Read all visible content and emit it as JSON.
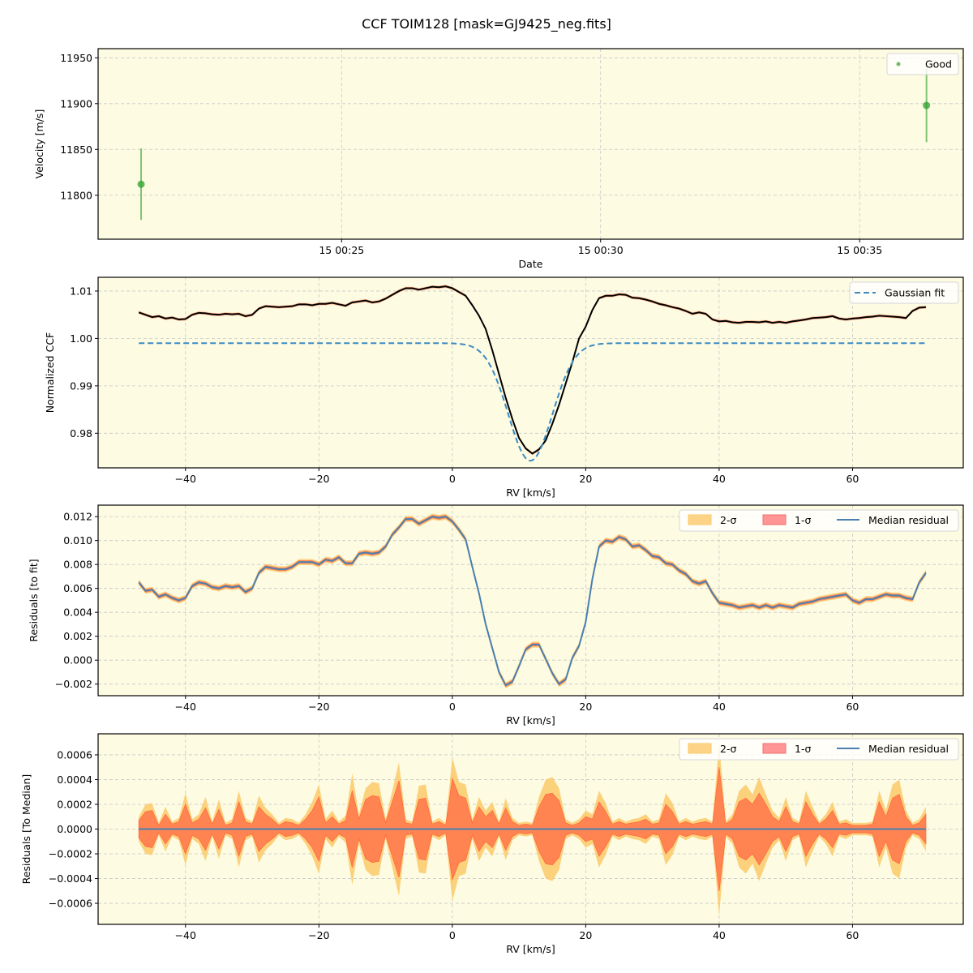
{
  "figure": {
    "title": "CCF TOIM128 [mask=GJ9425_neg.fits]",
    "background": "#ffffff",
    "axes_facecolor": "#fdfbe2"
  },
  "chart_data": [
    {
      "type": "scatter",
      "panel": "velocity",
      "title": "",
      "xlabel": "Date",
      "ylabel": "Velocity [m/s]",
      "x_ticks": [
        "15 00:25",
        "15 00:30",
        "15 00:35"
      ],
      "y_ticks": [
        11800,
        11850,
        11900,
        11950
      ],
      "ylim": [
        11752,
        11960
      ],
      "xlim_minutes": [
        20.3,
        37.0
      ],
      "grid": true,
      "legend": {
        "position": "upper right",
        "entries": [
          "Good"
        ]
      },
      "series": [
        {
          "name": "Good",
          "color": "#2ca02c",
          "points": [
            {
              "time": "15 00:21:08",
              "t_min": 21.13,
              "velocity": 11812,
              "error": 39
            },
            {
              "time": "15 00:36:17",
              "t_min": 36.29,
              "velocity": 11898,
              "error": 40
            }
          ]
        }
      ]
    },
    {
      "type": "line",
      "panel": "ccf",
      "xlabel": "RV [km/s]",
      "ylabel": "Normalized CCF",
      "x_ticks": [
        -40,
        -20,
        0,
        20,
        40,
        60
      ],
      "y_ticks": [
        0.98,
        0.99,
        1.0,
        1.01
      ],
      "y_tick_labels": [
        "0.98",
        "0.99",
        "1.00",
        "1.01"
      ],
      "xlim": [
        -53.1,
        76.6
      ],
      "ylim": [
        0.9727,
        1.0129
      ],
      "grid": true,
      "legend": {
        "position": "upper right",
        "entries": [
          "Gaussian fit"
        ]
      },
      "gaussian_fit": {
        "continuum": 0.999,
        "center": 11.7,
        "depth": 0.0248,
        "sigma": 3.3,
        "color": "#3b8bc2",
        "style": "dashed"
      },
      "x": [
        -47,
        -46,
        -45,
        -44,
        -43,
        -42,
        -41,
        -40,
        -39,
        -38,
        -37,
        -36,
        -35,
        -34,
        -33,
        -32,
        -31,
        -30,
        -29,
        -28,
        -27,
        -26,
        -25,
        -24,
        -23,
        -22,
        -21,
        -20,
        -19,
        -18,
        -17,
        -16,
        -15,
        -14,
        -13,
        -12,
        -11,
        -10,
        -9,
        -8,
        -7,
        -6,
        -5,
        -4,
        -3,
        -2,
        -1,
        0,
        1,
        2,
        3,
        4,
        5,
        6,
        7,
        8,
        9,
        10,
        11,
        12,
        13,
        14,
        15,
        16,
        17,
        18,
        19,
        20,
        21,
        22,
        23,
        24,
        25,
        26,
        27,
        28,
        29,
        30,
        31,
        32,
        33,
        34,
        35,
        36,
        37,
        38,
        39,
        40,
        41,
        42,
        43,
        44,
        45,
        46,
        47,
        48,
        49,
        50,
        51,
        52,
        53,
        54,
        55,
        56,
        57,
        58,
        59,
        60,
        61,
        62,
        63,
        64,
        65,
        66,
        67,
        68,
        69,
        70,
        71
      ],
      "series": [
        {
          "name": "Median CCF",
          "color": "#000000",
          "values": [
            1.0055,
            1.005,
            1.0045,
            1.0047,
            1.0042,
            1.0044,
            1.004,
            1.0041,
            1.005,
            1.0054,
            1.0053,
            1.0051,
            1.005,
            1.0052,
            1.0051,
            1.0052,
            1.0047,
            1.005,
            1.0063,
            1.0068,
            1.0067,
            1.0066,
            1.0067,
            1.0068,
            1.0072,
            1.0072,
            1.007,
            1.0073,
            1.0073,
            1.0075,
            1.0072,
            1.0069,
            1.0076,
            1.0078,
            1.008,
            1.0076,
            1.0078,
            1.0084,
            1.0092,
            1.01,
            1.0106,
            1.0106,
            1.0103,
            1.0106,
            1.0109,
            1.0108,
            1.011,
            1.0106,
            1.0098,
            1.009,
            1.007,
            1.0048,
            1.002,
            0.9975,
            0.9925,
            0.9875,
            0.983,
            0.979,
            0.9768,
            0.9757,
            0.9766,
            0.9785,
            0.982,
            0.986,
            0.9905,
            0.995,
            1.0,
            1.0025,
            1.006,
            1.0085,
            1.009,
            1.009,
            1.0093,
            1.0092,
            1.0086,
            1.0085,
            1.0082,
            1.0078,
            1.0073,
            1.007,
            1.0066,
            1.0063,
            1.0058,
            1.0052,
            1.0055,
            1.0052,
            1.004,
            1.0036,
            1.0037,
            1.0034,
            1.0033,
            1.0035,
            1.0035,
            1.0034,
            1.0036,
            1.0033,
            1.0035,
            1.0033,
            1.0036,
            1.0038,
            1.004,
            1.0043,
            1.0044,
            1.0045,
            1.0047,
            1.0042,
            1.004,
            1.0042,
            1.0043,
            1.0045,
            1.0046,
            1.0048,
            1.0047,
            1.0046,
            1.0045,
            1.0043,
            1.0058,
            1.0065,
            1.0066
          ]
        }
      ]
    },
    {
      "type": "line",
      "panel": "residuals_to_fit",
      "xlabel": "RV [km/s]",
      "ylabel": "Residuals [to fit]",
      "x_ticks": [
        -40,
        -20,
        0,
        20,
        40,
        60
      ],
      "y_ticks": [
        -0.002,
        0.0,
        0.002,
        0.004,
        0.006,
        0.008,
        0.01,
        0.012
      ],
      "y_tick_labels": [
        "−0.002",
        "0.000",
        "0.002",
        "0.004",
        "0.006",
        "0.008",
        "0.010",
        "0.012"
      ],
      "xlim": [
        -53.1,
        76.6
      ],
      "ylim": [
        -0.00297,
        0.01296
      ],
      "grid": true,
      "legend": {
        "position": "upper right",
        "ncol": 3,
        "entries": [
          "2-σ",
          "1-σ",
          "Median residual"
        ]
      },
      "x": [
        -47,
        -46,
        -45,
        -44,
        -43,
        -42,
        -41,
        -40,
        -39,
        -38,
        -37,
        -36,
        -35,
        -34,
        -33,
        -32,
        -31,
        -30,
        -29,
        -28,
        -27,
        -26,
        -25,
        -24,
        -23,
        -22,
        -21,
        -20,
        -19,
        -18,
        -17,
        -16,
        -15,
        -14,
        -13,
        -12,
        -11,
        -10,
        -9,
        -8,
        -7,
        -6,
        -5,
        -4,
        -3,
        -2,
        -1,
        0,
        1,
        2,
        3,
        4,
        5,
        6,
        7,
        8,
        9,
        10,
        11,
        12,
        13,
        14,
        15,
        16,
        17,
        18,
        19,
        20,
        21,
        22,
        23,
        24,
        25,
        26,
        27,
        28,
        29,
        30,
        31,
        32,
        33,
        34,
        35,
        36,
        37,
        38,
        39,
        40,
        41,
        42,
        43,
        44,
        45,
        46,
        47,
        48,
        49,
        50,
        51,
        52,
        53,
        54,
        55,
        56,
        57,
        58,
        59,
        60,
        61,
        62,
        63,
        64,
        65,
        66,
        67,
        68,
        69,
        70,
        71
      ],
      "series": [
        {
          "name": "Median residual",
          "color": "#4a7fb0",
          "values": [
            0.0065,
            0.0058,
            0.0059,
            0.0053,
            0.0055,
            0.0052,
            0.005,
            0.0052,
            0.0062,
            0.0065,
            0.0064,
            0.0061,
            0.006,
            0.0062,
            0.0061,
            0.0062,
            0.0057,
            0.006,
            0.0073,
            0.0078,
            0.0077,
            0.0076,
            0.0076,
            0.0078,
            0.0082,
            0.0082,
            0.0082,
            0.008,
            0.0084,
            0.0083,
            0.0086,
            0.0081,
            0.0081,
            0.0089,
            0.009,
            0.0089,
            0.009,
            0.0095,
            0.0105,
            0.0111,
            0.0118,
            0.0118,
            0.0114,
            0.0117,
            0.012,
            0.0119,
            0.012,
            0.0116,
            0.0109,
            0.0101,
            0.0078,
            0.0056,
            0.003,
            0.001,
            -0.001,
            -0.0021,
            -0.0018,
            -0.0005,
            0.0009,
            0.0013,
            0.0013,
            0.0001,
            -0.0011,
            -0.002,
            -0.0016,
            0.0002,
            0.0012,
            0.0032,
            0.0068,
            0.0095,
            0.01,
            0.0099,
            0.0103,
            0.0101,
            0.0095,
            0.0096,
            0.0092,
            0.0087,
            0.0086,
            0.0081,
            0.008,
            0.0075,
            0.0072,
            0.0066,
            0.0064,
            0.0066,
            0.0056,
            0.0048,
            0.0047,
            0.0046,
            0.0044,
            0.0045,
            0.0046,
            0.0044,
            0.0046,
            0.0044,
            0.0046,
            0.0045,
            0.0044,
            0.0047,
            0.0048,
            0.0049,
            0.0051,
            0.0052,
            0.0053,
            0.0054,
            0.0055,
            0.005,
            0.0048,
            0.0051,
            0.0051,
            0.0053,
            0.0055,
            0.0054,
            0.0054,
            0.0052,
            0.0051,
            0.0065,
            0.0073,
            0.0076
          ]
        }
      ]
    },
    {
      "type": "area",
      "panel": "residuals_to_median",
      "xlabel": "RV [km/s]",
      "ylabel": "Residuals [To Median]",
      "x_ticks": [
        -40,
        -20,
        0,
        20,
        40,
        60
      ],
      "y_ticks": [
        -0.0006,
        -0.0004,
        -0.0002,
        0.0,
        0.0002,
        0.0004,
        0.0006
      ],
      "y_tick_labels": [
        "−0.0006",
        "−0.0004",
        "−0.0002",
        "0.0000",
        "0.0002",
        "0.0004",
        "0.0006"
      ],
      "xlim": [
        -53.1,
        76.6
      ],
      "ylim": [
        -0.00077,
        0.00077
      ],
      "grid": true,
      "legend": {
        "position": "upper right",
        "ncol": 3,
        "entries": [
          "2-σ",
          "1-σ",
          "Median residual"
        ]
      },
      "x": [
        -47,
        -46,
        -45,
        -44,
        -43,
        -42,
        -41,
        -40,
        -39,
        -38,
        -37,
        -36,
        -35,
        -34,
        -33,
        -32,
        -31,
        -30,
        -29,
        -28,
        -27,
        -26,
        -25,
        -24,
        -23,
        -22,
        -21,
        -20,
        -19,
        -18,
        -17,
        -16,
        -15,
        -14,
        -13,
        -12,
        -11,
        -10,
        -9,
        -8,
        -7,
        -6,
        -5,
        -4,
        -3,
        -2,
        -1,
        0,
        1,
        2,
        3,
        4,
        5,
        6,
        7,
        8,
        9,
        10,
        11,
        12,
        13,
        14,
        15,
        16,
        17,
        18,
        19,
        20,
        21,
        22,
        23,
        24,
        25,
        26,
        27,
        28,
        29,
        30,
        31,
        32,
        33,
        34,
        35,
        36,
        37,
        38,
        39,
        40,
        41,
        42,
        43,
        44,
        45,
        46,
        47,
        48,
        49,
        50,
        51,
        52,
        53,
        54,
        55,
        56,
        57,
        58,
        59,
        60,
        61,
        62,
        63,
        64,
        65,
        66,
        67,
        68,
        69,
        70,
        71
      ],
      "series": [
        {
          "name": "1-σ",
          "color": "#ff7f50",
          "half_width": [
            7e-05,
            0.00014,
            0.00015,
            3e-05,
            0.00012,
            4e-05,
            6e-05,
            0.0002,
            5e-05,
            8e-05,
            0.00017,
            4e-05,
            0.00016,
            3e-05,
            5e-05,
            0.00022,
            6e-05,
            4e-05,
            0.00018,
            0.00012,
            8e-05,
            3e-05,
            6e-05,
            5e-05,
            3e-05,
            8e-05,
            0.00015,
            0.00026,
            5e-05,
            0.0001,
            4e-05,
            7e-05,
            0.00031,
            8e-05,
            0.00024,
            0.00027,
            0.00026,
            5e-05,
            0.00022,
            0.00039,
            5e-05,
            4e-05,
            0.00024,
            0.00025,
            4e-05,
            6e-05,
            3e-05,
            0.00041,
            0.00027,
            0.00025,
            5e-05,
            0.00018,
            0.0001,
            0.00015,
            4e-05,
            0.00017,
            6e-05,
            3e-05,
            4e-05,
            3e-05,
            0.00018,
            0.00028,
            0.00029,
            0.00023,
            5e-05,
            3e-05,
            5e-05,
            0.0001,
            8e-05,
            0.00022,
            0.00014,
            4e-05,
            6e-05,
            4e-05,
            5e-05,
            6e-05,
            8e-05,
            4e-05,
            5e-05,
            0.0002,
            0.00014,
            4e-05,
            6e-05,
            4e-05,
            5e-05,
            6e-05,
            4e-05,
            0.0005,
            4e-05,
            8e-05,
            0.00022,
            0.00025,
            0.0002,
            0.00029,
            0.0002,
            0.0001,
            6e-05,
            0.00018,
            6e-05,
            4e-05,
            0.00022,
            0.00012,
            4e-05,
            8e-05,
            0.00015,
            4e-05,
            5e-05,
            3e-05,
            3e-05,
            3e-05,
            4e-05,
            0.00022,
            0.0001,
            0.00025,
            0.00028,
            0.0001,
            3e-05,
            5e-05,
            0.00012,
            0.00015,
            0.00014
          ]
        },
        {
          "name": "2-σ",
          "color": "#fcc96a",
          "half_width": [
            0.0001,
            0.0002,
            0.00021,
            5e-05,
            0.00018,
            6e-05,
            9e-05,
            0.00029,
            8e-05,
            0.00012,
            0.00026,
            6e-05,
            0.00024,
            5e-05,
            8e-05,
            0.00031,
            9e-05,
            6e-05,
            0.00027,
            0.00017,
            0.00012,
            5e-05,
            9e-05,
            8e-05,
            5e-05,
            0.00012,
            0.00022,
            0.00036,
            8e-05,
            0.00015,
            6e-05,
            0.00011,
            0.00045,
            0.00012,
            0.00033,
            0.00038,
            0.00037,
            8e-05,
            0.00031,
            0.00054,
            8e-05,
            6e-05,
            0.00035,
            0.00036,
            6e-05,
            9e-05,
            5e-05,
            0.00058,
            0.00038,
            0.00036,
            8e-05,
            0.00026,
            0.00015,
            0.00022,
            6e-05,
            0.00025,
            9e-05,
            5e-05,
            6e-05,
            5e-05,
            0.00026,
            0.0004,
            0.00042,
            0.00033,
            8e-05,
            5e-05,
            8e-05,
            0.00015,
            0.00012,
            0.00031,
            0.00021,
            6e-05,
            9e-05,
            6e-05,
            8e-05,
            9e-05,
            0.00012,
            6e-05,
            8e-05,
            0.00029,
            0.00021,
            6e-05,
            9e-05,
            6e-05,
            8e-05,
            9e-05,
            6e-05,
            0.0007,
            6e-05,
            0.00012,
            0.00031,
            0.00036,
            0.00028,
            0.00042,
            0.00028,
            0.00015,
            9e-05,
            0.00026,
            9e-05,
            6e-05,
            0.00031,
            0.00018,
            6e-05,
            0.00012,
            0.00022,
            6e-05,
            8e-05,
            5e-05,
            5e-05,
            5e-05,
            6e-05,
            0.00031,
            0.00015,
            0.00036,
            0.0004,
            0.00015,
            5e-05,
            8e-05,
            0.00018,
            0.00022,
            0.0002
          ]
        },
        {
          "name": "Median residual",
          "color": "#4a7fb0",
          "values_constant": 0.0
        }
      ]
    }
  ]
}
